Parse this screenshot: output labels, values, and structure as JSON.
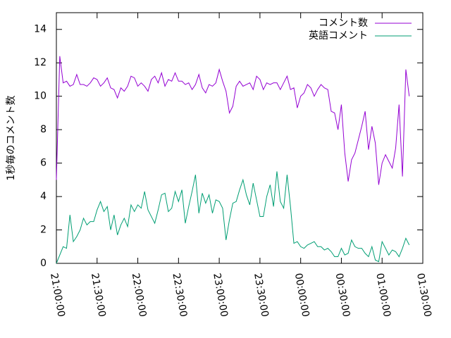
{
  "chart_data": {
    "type": "line",
    "y_label": "1秒毎のコメント数",
    "x": [
      0,
      2.5,
      5,
      7.5,
      10,
      12.5,
      15,
      17.5,
      20,
      22.5,
      25,
      27.5,
      30,
      32.5,
      35,
      37.5,
      40,
      42.5,
      45,
      47.5,
      50,
      52.5,
      55,
      57.5,
      60,
      62.5,
      65,
      67.5,
      70,
      72.5,
      75,
      77.5,
      80,
      82.5,
      85,
      87.5,
      90,
      92.5,
      95,
      97.5,
      100,
      102.5,
      105,
      107.5,
      110,
      112.5,
      115,
      117.5,
      120,
      122.5,
      125,
      127.5,
      130,
      132.5,
      135,
      137.5,
      140,
      142.5,
      145,
      147.5,
      150,
      152.5,
      155,
      157.5,
      160,
      162.5,
      165,
      167.5,
      170,
      172.5,
      175,
      177.5,
      180,
      182.5,
      185,
      187.5,
      190,
      192.5,
      195,
      197.5,
      200,
      202.5,
      205,
      207.5,
      210,
      212.5,
      215,
      217.5,
      220,
      222.5,
      225,
      227.5,
      230,
      232.5,
      235,
      237.5,
      240,
      242.5,
      245,
      247.5,
      250,
      252.5,
      255,
      257.5,
      260
    ],
    "series": [
      {
        "name": "コメント数",
        "color": "#9400d3",
        "values": [
          5,
          12.4,
          10.8,
          10.9,
          10.6,
          10.7,
          11.3,
          10.7,
          10.7,
          10.6,
          10.8,
          11.1,
          11.0,
          10.6,
          10.8,
          11.1,
          10.5,
          10.4,
          9.9,
          10.5,
          10.3,
          10.6,
          11.2,
          11.1,
          10.6,
          10.8,
          10.6,
          10.3,
          11.0,
          11.2,
          10.8,
          11.4,
          10.6,
          11.0,
          10.9,
          11.4,
          10.9,
          10.9,
          10.7,
          10.8,
          10.4,
          10.7,
          11.3,
          10.5,
          10.2,
          10.7,
          10.6,
          10.8,
          11.6,
          10.9,
          10.3,
          9.0,
          9.4,
          10.6,
          10.9,
          10.6,
          10.7,
          10.8,
          10.4,
          11.2,
          11.0,
          10.4,
          10.8,
          10.7,
          10.8,
          10.8,
          10.4,
          10.8,
          11.2,
          10.4,
          10.5,
          9.3,
          10.0,
          10.2,
          10.7,
          10.5,
          10.0,
          10.4,
          10.7,
          10.5,
          10.4,
          9.1,
          9.0,
          8.0,
          9.5,
          6.6,
          4.9,
          6.2,
          6.6,
          7.4,
          8.2,
          9.1,
          6.8,
          8.2,
          7.2,
          4.7,
          6.0,
          6.5,
          6.1,
          5.7,
          6.9,
          9.5,
          5.2,
          11.6,
          10.0
        ]
      },
      {
        "name": "英語コメント",
        "color": "#009e73",
        "values": [
          0,
          0.5,
          1.0,
          0.9,
          2.9,
          1.3,
          1.6,
          2.0,
          2.7,
          2.3,
          2.5,
          2.5,
          3.2,
          3.7,
          3.1,
          3.4,
          2.0,
          2.9,
          1.7,
          2.3,
          2.7,
          2.2,
          3.5,
          3.1,
          3.5,
          3.3,
          4.3,
          3.2,
          2.8,
          2.4,
          3.2,
          4.1,
          4.2,
          3.1,
          3.3,
          4.3,
          3.7,
          4.4,
          2.4,
          3.4,
          4.3,
          5.3,
          3.0,
          4.2,
          3.6,
          4.1,
          3.0,
          3.8,
          3.7,
          3.3,
          1.4,
          2.6,
          3.6,
          3.7,
          4.4,
          5.0,
          4.1,
          3.5,
          4.8,
          3.8,
          2.8,
          2.8,
          4.0,
          4.7,
          3.4,
          5.5,
          3.7,
          3.3,
          5.3,
          3.4,
          1.2,
          1.3,
          1.0,
          0.9,
          1.1,
          1.2,
          1.3,
          1.0,
          1.0,
          0.8,
          0.9,
          0.7,
          0.4,
          0.4,
          0.9,
          0.5,
          0.6,
          1.4,
          1.0,
          0.9,
          0.9,
          0.6,
          0.4,
          1.0,
          0.2,
          0.1,
          1.3,
          0.9,
          0.5,
          0.8,
          0.7,
          0.4,
          0.9,
          1.5,
          1.1
        ]
      }
    ],
    "xlim": [
      0,
      270
    ],
    "xticks": [
      {
        "value": 0,
        "label": "21:00:00"
      },
      {
        "value": 30,
        "label": "21:30:00"
      },
      {
        "value": 60,
        "label": "22:00:00"
      },
      {
        "value": 90,
        "label": "22:30:00"
      },
      {
        "value": 120,
        "label": "23:00:00"
      },
      {
        "value": 150,
        "label": "23:30:00"
      },
      {
        "value": 180,
        "label": "00:00:00"
      },
      {
        "value": 210,
        "label": "00:30:00"
      },
      {
        "value": 240,
        "label": "01:00:00"
      },
      {
        "value": 270,
        "label": "01:30:00"
      }
    ],
    "ylim": [
      0,
      15
    ],
    "yticks": [
      0,
      2,
      4,
      6,
      8,
      10,
      12,
      14
    ],
    "grid": false,
    "legend": "top-right"
  }
}
